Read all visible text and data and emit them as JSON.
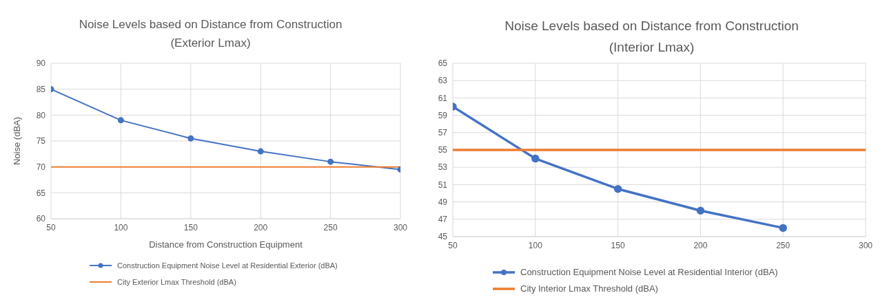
{
  "chart_data": [
    {
      "type": "line",
      "title": "Noise Levels based on Distance from Construction\n(Exterior Lmax)",
      "xlabel": "Distance from Construction Equipment",
      "ylabel": "Noise (dBA)",
      "x": [
        50,
        100,
        150,
        200,
        250,
        300
      ],
      "series": [
        {
          "name": "Construction Equipment Noise Level at Residential Exterior (dBA)",
          "color": "#4472c4",
          "marker": "circle",
          "values": [
            85,
            79,
            75.5,
            73,
            71,
            69.5
          ]
        },
        {
          "name": "City Exterior Lmax Threshold (dBA)",
          "color": "#ed7d31",
          "marker": "none",
          "values": [
            70,
            70,
            70,
            70,
            70,
            70
          ]
        }
      ],
      "xlim": [
        50,
        300
      ],
      "xticks": [
        50,
        100,
        150,
        200,
        250,
        300
      ],
      "ylim": [
        60,
        90
      ],
      "yticks": [
        60,
        65,
        70,
        75,
        80,
        85,
        90
      ],
      "grid": true,
      "legend": "bottom"
    },
    {
      "type": "line",
      "title": "Noise Levels based on Distance from Construction\n(Interior Lmax)",
      "x": [
        50,
        100,
        150,
        200,
        250,
        300
      ],
      "series": [
        {
          "name": "Construction Equipment Noise Level at Residential Interior  (dBA)",
          "color": "#4472c4",
          "marker": "circle",
          "values": [
            60,
            54,
            50.5,
            48,
            46,
            null
          ]
        },
        {
          "name": "City Interior Lmax Threshold (dBA)",
          "color": "#ed7d31",
          "marker": "none",
          "values": [
            55,
            55,
            55,
            55,
            55,
            55
          ]
        }
      ],
      "xlim": [
        50,
        300
      ],
      "xticks": [
        50,
        100,
        150,
        200,
        250,
        300
      ],
      "ylim": [
        45,
        65
      ],
      "yticks": [
        45,
        47,
        49,
        51,
        53,
        55,
        57,
        59,
        61,
        63,
        65
      ],
      "grid": true,
      "legend": "bottom"
    }
  ]
}
